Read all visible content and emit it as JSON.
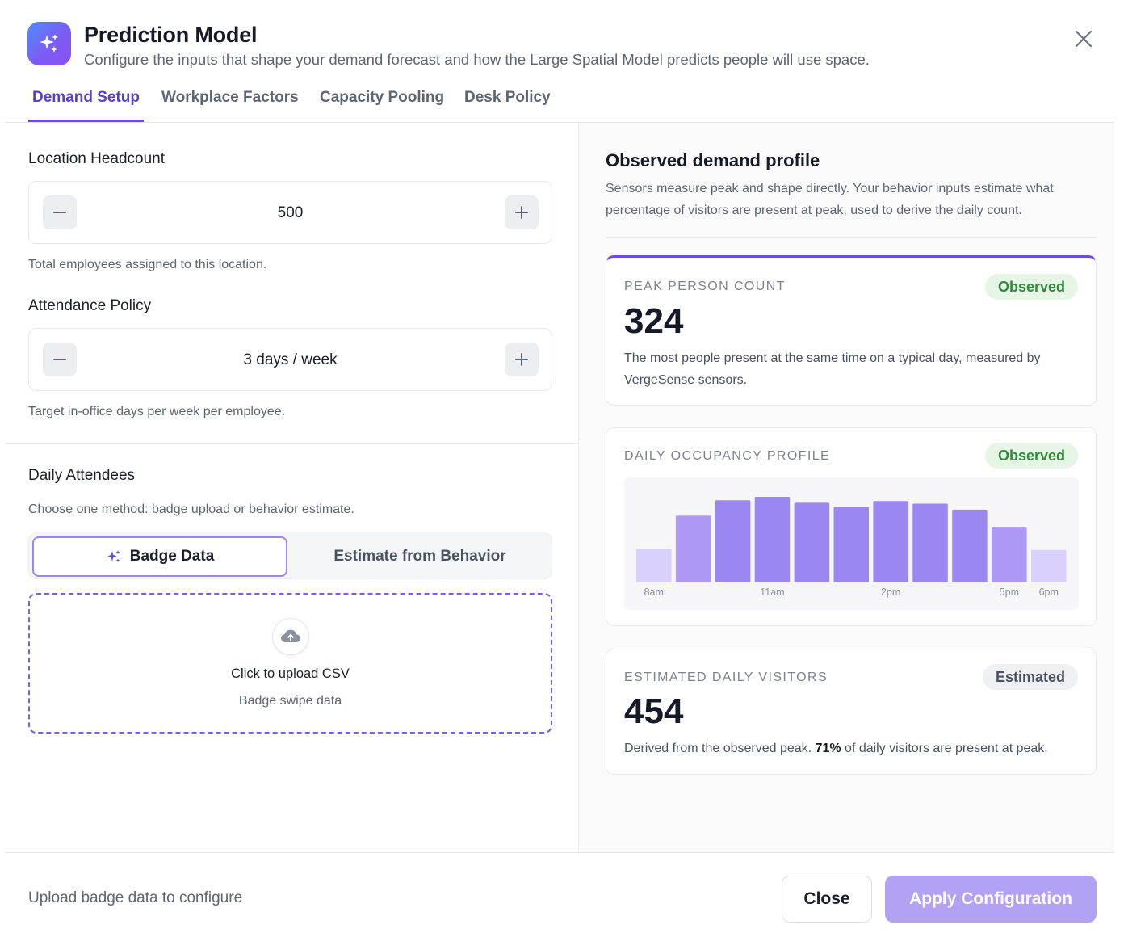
{
  "header": {
    "title": "Prediction Model",
    "subtitle": "Configure the inputs that shape your demand forecast and how the Large Spatial Model predicts people will use space.",
    "app_icon": "sparkles-icon",
    "close_icon": "close-icon"
  },
  "tabs": [
    {
      "label": "Demand Setup",
      "active": true
    },
    {
      "label": "Workplace Factors",
      "active": false
    },
    {
      "label": "Capacity Pooling",
      "active": false
    },
    {
      "label": "Desk Policy",
      "active": false
    }
  ],
  "left": {
    "headcount": {
      "label": "Location Headcount",
      "value": "500",
      "hint": "Total employees assigned to this location."
    },
    "attendance": {
      "label": "Attendance Policy",
      "value": "3 days / week",
      "hint": "Target in-office days per week per employee."
    },
    "daily_attendees": {
      "label": "Daily Attendees",
      "hint": "Choose one method: badge upload or behavior estimate.",
      "method_active": "Badge Data",
      "method_other": "Estimate from Behavior"
    },
    "upload": {
      "title": "Click to upload CSV",
      "subtitle": "Badge swipe data",
      "icon": "cloud-upload-icon"
    }
  },
  "right": {
    "title": "Observed demand profile",
    "description": "Sensors measure peak and shape directly. Your behavior inputs estimate what percentage of visitors are present at peak, used to derive the daily count.",
    "peak": {
      "label": "PEAK PERSON COUNT",
      "badge": "Observed",
      "value": "324",
      "description": "The most people present at the same time on a typical day, measured by VergeSense sensors."
    },
    "profile": {
      "label": "DAILY OCCUPANCY PROFILE",
      "badge": "Observed"
    },
    "estimated": {
      "label": "ESTIMATED DAILY VISITORS",
      "badge": "Estimated",
      "value": "454",
      "desc_before": "Derived from the observed peak. ",
      "desc_bold": "71%",
      "desc_after": " of daily visitors are present at peak."
    }
  },
  "chart_data": {
    "type": "bar",
    "categories": [
      "8am",
      "9am",
      "10am",
      "11am",
      "12pm",
      "1pm",
      "2pm",
      "3pm",
      "4pm",
      "5pm",
      "6pm"
    ],
    "visible_tick_labels": [
      "8am",
      "",
      "",
      "11am",
      "",
      "",
      "2pm",
      "",
      "",
      "5pm",
      "6pm"
    ],
    "values": [
      0.39,
      0.78,
      0.96,
      1.0,
      0.93,
      0.88,
      0.95,
      0.92,
      0.85,
      0.65,
      0.38
    ],
    "ylim": [
      0,
      1
    ],
    "colors": {
      "low": "#d9d1fb",
      "mid": "#ad99f4",
      "high": "#9c87f2"
    },
    "xlabel": "",
    "ylabel": "",
    "title": "",
    "grid": false
  },
  "footer": {
    "status": "Upload badge data to configure",
    "close_label": "Close",
    "apply_label": "Apply Configuration"
  }
}
